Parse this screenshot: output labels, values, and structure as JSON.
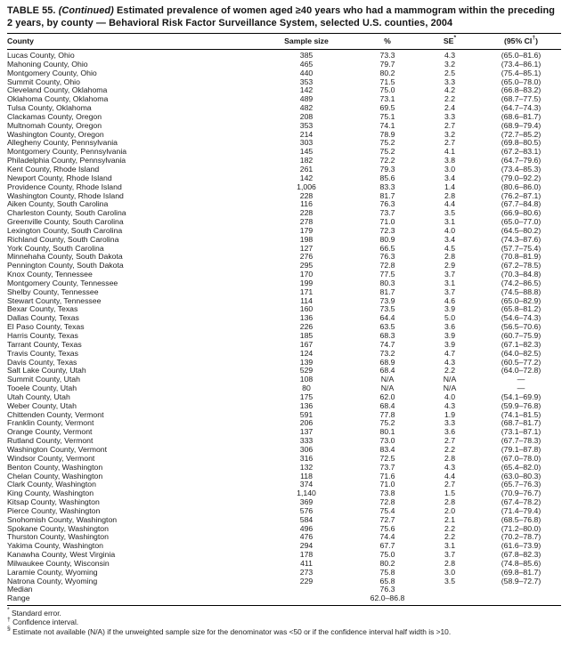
{
  "title": {
    "table_no": "TABLE 55.",
    "continued": "(Continued)",
    "text": "Estimated prevalence of women aged ≥40 years who had a mammogram within the preceding 2 years, by county — Behavioral Risk Factor Surveillance System, selected U.S. counties, 2004"
  },
  "table": {
    "columns": [
      {
        "text": "County",
        "sup": "",
        "close": ""
      },
      {
        "text": "Sample size",
        "sup": "",
        "close": ""
      },
      {
        "text": "%",
        "sup": "",
        "close": ""
      },
      {
        "text": "SE",
        "sup": "*",
        "close": ""
      },
      {
        "text": "(95% CI",
        "sup": "†",
        "close": ")"
      }
    ],
    "rows": [
      {
        "county": "Lucas County, Ohio",
        "n": "385",
        "pct": "73.3",
        "se": "4.3",
        "ci": "(65.0–81.6)"
      },
      {
        "county": "Mahoning County, Ohio",
        "n": "465",
        "pct": "79.7",
        "se": "3.2",
        "ci": "(73.4–86.1)"
      },
      {
        "county": "Montgomery County, Ohio",
        "n": "440",
        "pct": "80.2",
        "se": "2.5",
        "ci": "(75.4–85.1)"
      },
      {
        "county": "Summit County, Ohio",
        "n": "353",
        "pct": "71.5",
        "se": "3.3",
        "ci": "(65.0–78.0)"
      },
      {
        "county": "Cleveland County, Oklahoma",
        "n": "142",
        "pct": "75.0",
        "se": "4.2",
        "ci": "(66.8–83.2)"
      },
      {
        "county": "Oklahoma County, Oklahoma",
        "n": "489",
        "pct": "73.1",
        "se": "2.2",
        "ci": "(68.7–77.5)"
      },
      {
        "county": "Tulsa County, Oklahoma",
        "n": "482",
        "pct": "69.5",
        "se": "2.4",
        "ci": "(64.7–74.3)"
      },
      {
        "county": "Clackamas County, Oregon",
        "n": "208",
        "pct": "75.1",
        "se": "3.3",
        "ci": "(68.6–81.7)"
      },
      {
        "county": "Multnomah County, Oregon",
        "n": "353",
        "pct": "74.1",
        "se": "2.7",
        "ci": "(68.9–79.4)"
      },
      {
        "county": "Washington County, Oregon",
        "n": "214",
        "pct": "78.9",
        "se": "3.2",
        "ci": "(72.7–85.2)"
      },
      {
        "county": "Allegheny County, Pennsylvania",
        "n": "303",
        "pct": "75.2",
        "se": "2.7",
        "ci": "(69.8–80.5)"
      },
      {
        "county": "Montgomery County, Pennsylvania",
        "n": "145",
        "pct": "75.2",
        "se": "4.1",
        "ci": "(67.2–83.1)"
      },
      {
        "county": "Philadelphia County, Pennsylvania",
        "n": "182",
        "pct": "72.2",
        "se": "3.8",
        "ci": "(64.7–79.6)"
      },
      {
        "county": "Kent County, Rhode Island",
        "n": "261",
        "pct": "79.3",
        "se": "3.0",
        "ci": "(73.4–85.3)"
      },
      {
        "county": "Newport County, Rhode Island",
        "n": "142",
        "pct": "85.6",
        "se": "3.4",
        "ci": "(79.0–92.2)"
      },
      {
        "county": "Providence County, Rhode Island",
        "n": "1,006",
        "pct": "83.3",
        "se": "1.4",
        "ci": "(80.6–86.0)"
      },
      {
        "county": "Washington County, Rhode Island",
        "n": "228",
        "pct": "81.7",
        "se": "2.8",
        "ci": "(76.2–87.1)"
      },
      {
        "county": "Aiken County, South Carolina",
        "n": "116",
        "pct": "76.3",
        "se": "4.4",
        "ci": "(67.7–84.8)"
      },
      {
        "county": "Charleston County, South Carolina",
        "n": "228",
        "pct": "73.7",
        "se": "3.5",
        "ci": "(66.9–80.6)"
      },
      {
        "county": "Greenville County, South Carolina",
        "n": "278",
        "pct": "71.0",
        "se": "3.1",
        "ci": "(65.0–77.0)"
      },
      {
        "county": "Lexington County, South Carolina",
        "n": "179",
        "pct": "72.3",
        "se": "4.0",
        "ci": "(64.5–80.2)"
      },
      {
        "county": "Richland County, South Carolina",
        "n": "198",
        "pct": "80.9",
        "se": "3.4",
        "ci": "(74.3–87.6)"
      },
      {
        "county": "York County, South Carolina",
        "n": "127",
        "pct": "66.5",
        "se": "4.5",
        "ci": "(57.7–75.4)"
      },
      {
        "county": "Minnehaha County, South Dakota",
        "n": "276",
        "pct": "76.3",
        "se": "2.8",
        "ci": "(70.8–81.9)"
      },
      {
        "county": "Pennington County, South Dakota",
        "n": "295",
        "pct": "72.8",
        "se": "2.9",
        "ci": "(67.2–78.5)"
      },
      {
        "county": "Knox County, Tennessee",
        "n": "170",
        "pct": "77.5",
        "se": "3.7",
        "ci": "(70.3–84.8)"
      },
      {
        "county": "Montgomery County, Tennessee",
        "n": "199",
        "pct": "80.3",
        "se": "3.1",
        "ci": "(74.2–86.5)"
      },
      {
        "county": "Shelby County, Tennessee",
        "n": "171",
        "pct": "81.7",
        "se": "3.7",
        "ci": "(74.5–88.8)"
      },
      {
        "county": "Stewart County, Tennessee",
        "n": "114",
        "pct": "73.9",
        "se": "4.6",
        "ci": "(65.0–82.9)"
      },
      {
        "county": "Bexar County, Texas",
        "n": "160",
        "pct": "73.5",
        "se": "3.9",
        "ci": "(65.8–81.2)"
      },
      {
        "county": "Dallas County, Texas",
        "n": "136",
        "pct": "64.4",
        "se": "5.0",
        "ci": "(54.6–74.3)"
      },
      {
        "county": "El Paso County, Texas",
        "n": "226",
        "pct": "63.5",
        "se": "3.6",
        "ci": "(56.5–70.6)"
      },
      {
        "county": "Harris County, Texas",
        "n": "185",
        "pct": "68.3",
        "se": "3.9",
        "ci": "(60.7–75.9)"
      },
      {
        "county": "Tarrant County, Texas",
        "n": "167",
        "pct": "74.7",
        "se": "3.9",
        "ci": "(67.1–82.3)"
      },
      {
        "county": "Travis County, Texas",
        "n": "124",
        "pct": "73.2",
        "se": "4.7",
        "ci": "(64.0–82.5)"
      },
      {
        "county": "Davis County, Texas",
        "n": "139",
        "pct": "68.9",
        "se": "4.3",
        "ci": "(60.5–77.2)"
      },
      {
        "county": "Salt Lake County, Utah",
        "n": "529",
        "pct": "68.4",
        "se": "2.2",
        "ci": "(64.0–72.8)"
      },
      {
        "county": "Summit County, Utah",
        "n": "108",
        "pct": "N/A",
        "se": "N/A",
        "ci": "—"
      },
      {
        "county": "Tooele County, Utah",
        "n": "80",
        "pct": "N/A",
        "se": "N/A",
        "ci": "—"
      },
      {
        "county": "Utah County, Utah",
        "n": "175",
        "pct": "62.0",
        "se": "4.0",
        "ci": "(54.1–69.9)"
      },
      {
        "county": "Weber County, Utah",
        "n": "136",
        "pct": "68.4",
        "se": "4.3",
        "ci": "(59.9–76.8)"
      },
      {
        "county": "Chittenden County, Vermont",
        "n": "591",
        "pct": "77.8",
        "se": "1.9",
        "ci": "(74.1–81.5)"
      },
      {
        "county": "Franklin County, Vermont",
        "n": "206",
        "pct": "75.2",
        "se": "3.3",
        "ci": "(68.7–81.7)"
      },
      {
        "county": "Orange County, Vermont",
        "n": "137",
        "pct": "80.1",
        "se": "3.6",
        "ci": "(73.1–87.1)"
      },
      {
        "county": "Rutland County, Vermont",
        "n": "333",
        "pct": "73.0",
        "se": "2.7",
        "ci": "(67.7–78.3)"
      },
      {
        "county": "Washington County, Vermont",
        "n": "306",
        "pct": "83.4",
        "se": "2.2",
        "ci": "(79.1–87.8)"
      },
      {
        "county": "Windsor County, Vermont",
        "n": "316",
        "pct": "72.5",
        "se": "2.8",
        "ci": "(67.0–78.0)"
      },
      {
        "county": "Benton County, Washington",
        "n": "132",
        "pct": "73.7",
        "se": "4.3",
        "ci": "(65.4–82.0)"
      },
      {
        "county": "Chelan County, Washington",
        "n": "118",
        "pct": "71.6",
        "se": "4.4",
        "ci": "(63.0–80.3)"
      },
      {
        "county": "Clark County, Washington",
        "n": "374",
        "pct": "71.0",
        "se": "2.7",
        "ci": "(65.7–76.3)"
      },
      {
        "county": "King County, Washington",
        "n": "1,140",
        "pct": "73.8",
        "se": "1.5",
        "ci": "(70.9–76.7)"
      },
      {
        "county": "Kitsap County, Washington",
        "n": "369",
        "pct": "72.8",
        "se": "2.8",
        "ci": "(67.4–78.2)"
      },
      {
        "county": "Pierce County, Washington",
        "n": "576",
        "pct": "75.4",
        "se": "2.0",
        "ci": "(71.4–79.4)"
      },
      {
        "county": "Snohomish County, Washington",
        "n": "584",
        "pct": "72.7",
        "se": "2.1",
        "ci": "(68.5–76.8)"
      },
      {
        "county": "Spokane County, Washington",
        "n": "496",
        "pct": "75.6",
        "se": "2.2",
        "ci": "(71.2–80.0)"
      },
      {
        "county": "Thurston County, Washington",
        "n": "476",
        "pct": "74.4",
        "se": "2.2",
        "ci": "(70.2–78.7)"
      },
      {
        "county": "Yakima County, Washington",
        "n": "294",
        "pct": "67.7",
        "se": "3.1",
        "ci": "(61.6–73.9)"
      },
      {
        "county": "Kanawha County, West Virginia",
        "n": "178",
        "pct": "75.0",
        "se": "3.7",
        "ci": "(67.8–82.3)"
      },
      {
        "county": "Milwaukee County, Wisconsin",
        "n": "411",
        "pct": "80.2",
        "se": "2.8",
        "ci": "(74.8–85.6)"
      },
      {
        "county": "Laramie County, Wyoming",
        "n": "273",
        "pct": "75.8",
        "se": "3.0",
        "ci": "(69.8–81.7)"
      },
      {
        "county": "Natrona County, Wyoming",
        "n": "229",
        "pct": "65.8",
        "se": "3.5",
        "ci": "(58.9–72.7)"
      },
      {
        "county": "Median",
        "n": "",
        "pct": "76.3",
        "se": "",
        "ci": "",
        "summary": true
      },
      {
        "county": "Range",
        "n": "",
        "pct": "62.0–86.8",
        "se": "",
        "ci": "",
        "summary": true
      }
    ]
  },
  "footnotes": [
    {
      "sup": "*",
      "text": "Standard error."
    },
    {
      "sup": "†",
      "text": "Confidence interval."
    },
    {
      "sup": "§",
      "text": "Estimate not available (N/A) if the unweighted sample size for the denominator was <50 or if the confidence interval half width is >10."
    }
  ]
}
